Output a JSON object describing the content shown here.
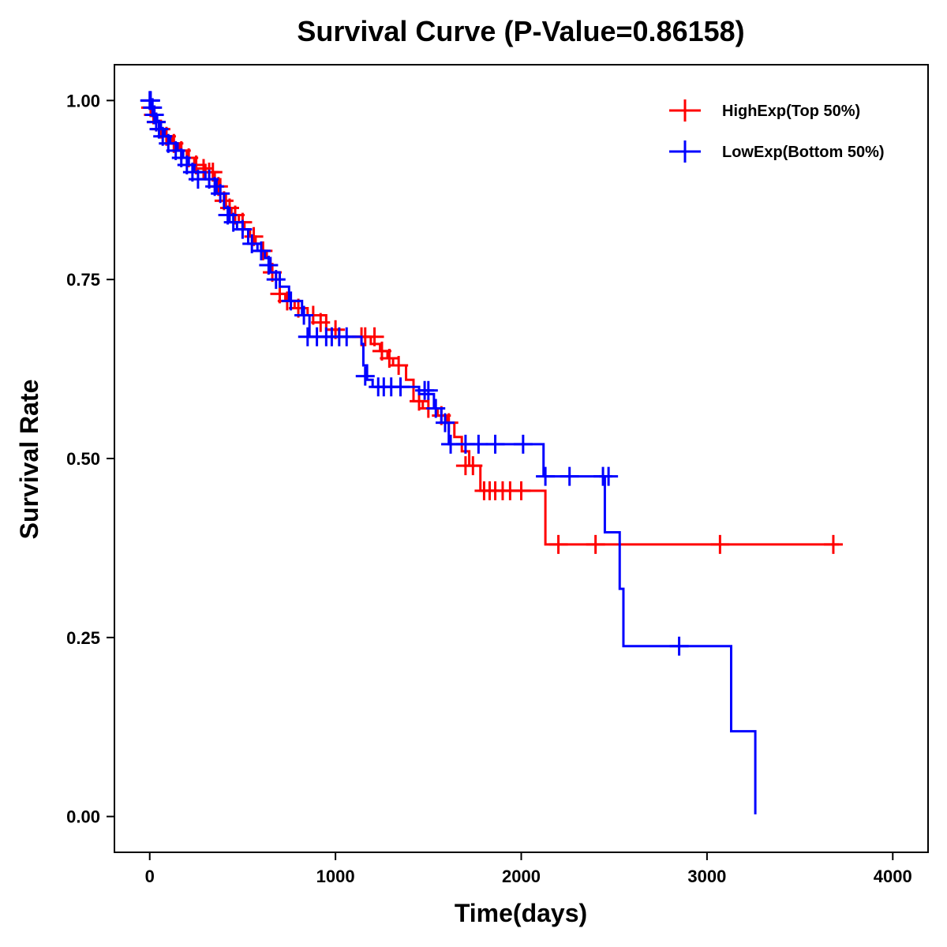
{
  "chart_data": {
    "type": "line",
    "step": true,
    "title": "Survival Curve (P-Value=0.86158)",
    "xlabel": "Time(days)",
    "ylabel": "Survival Rate",
    "xlim": [
      -190,
      4190
    ],
    "ylim": [
      -0.05,
      1.05
    ],
    "xticks": [
      0,
      1000,
      2000,
      3000,
      4000
    ],
    "xtick_labels": [
      "0",
      "1000",
      "2000",
      "3000",
      "4000"
    ],
    "yticks": [
      0.0,
      0.25,
      0.5,
      0.75,
      1.0
    ],
    "ytick_labels": [
      "0.00",
      "0.25",
      "0.50",
      "0.75",
      "1.00"
    ],
    "legend_position": "top-right",
    "series": [
      {
        "name": "HighExp(Top 50%)",
        "color": "#ff0000",
        "steps": [
          [
            0,
            1.0
          ],
          [
            10,
            0.99
          ],
          [
            25,
            0.97
          ],
          [
            50,
            0.96
          ],
          [
            80,
            0.95
          ],
          [
            120,
            0.94
          ],
          [
            160,
            0.93
          ],
          [
            200,
            0.92
          ],
          [
            240,
            0.91
          ],
          [
            300,
            0.9
          ],
          [
            350,
            0.89
          ],
          [
            380,
            0.87
          ],
          [
            410,
            0.85
          ],
          [
            440,
            0.84
          ],
          [
            480,
            0.83
          ],
          [
            510,
            0.82
          ],
          [
            540,
            0.81
          ],
          [
            570,
            0.8
          ],
          [
            600,
            0.79
          ],
          [
            630,
            0.78
          ],
          [
            650,
            0.76
          ],
          [
            680,
            0.75
          ],
          [
            700,
            0.73
          ],
          [
            730,
            0.72
          ],
          [
            780,
            0.71
          ],
          [
            850,
            0.7
          ],
          [
            950,
            0.68
          ],
          [
            1020,
            0.67
          ],
          [
            1190,
            0.66
          ],
          [
            1240,
            0.65
          ],
          [
            1280,
            0.64
          ],
          [
            1310,
            0.63
          ],
          [
            1380,
            0.61
          ],
          [
            1420,
            0.58
          ],
          [
            1470,
            0.57
          ],
          [
            1550,
            0.56
          ],
          [
            1600,
            0.55
          ],
          [
            1640,
            0.53
          ],
          [
            1680,
            0.51
          ],
          [
            1720,
            0.49
          ],
          [
            1780,
            0.455
          ],
          [
            2130,
            0.38
          ],
          [
            3710,
            0.38
          ]
        ],
        "censors": [
          [
            5,
            0.99
          ],
          [
            20,
            0.98
          ],
          [
            35,
            0.97
          ],
          [
            60,
            0.96
          ],
          [
            90,
            0.95
          ],
          [
            130,
            0.94
          ],
          [
            170,
            0.93
          ],
          [
            210,
            0.92
          ],
          [
            250,
            0.91
          ],
          [
            290,
            0.905
          ],
          [
            320,
            0.9
          ],
          [
            340,
            0.9
          ],
          [
            370,
            0.88
          ],
          [
            400,
            0.86
          ],
          [
            430,
            0.85
          ],
          [
            460,
            0.84
          ],
          [
            500,
            0.83
          ],
          [
            560,
            0.81
          ],
          [
            610,
            0.79
          ],
          [
            660,
            0.76
          ],
          [
            700,
            0.73
          ],
          [
            740,
            0.72
          ],
          [
            800,
            0.71
          ],
          [
            880,
            0.7
          ],
          [
            920,
            0.69
          ],
          [
            1000,
            0.68
          ],
          [
            1140,
            0.67
          ],
          [
            1160,
            0.67
          ],
          [
            1210,
            0.67
          ],
          [
            1250,
            0.65
          ],
          [
            1290,
            0.64
          ],
          [
            1340,
            0.63
          ],
          [
            1450,
            0.58
          ],
          [
            1500,
            0.57
          ],
          [
            1570,
            0.56
          ],
          [
            1610,
            0.55
          ],
          [
            1700,
            0.49
          ],
          [
            1740,
            0.49
          ],
          [
            1800,
            0.455
          ],
          [
            1830,
            0.455
          ],
          [
            1860,
            0.455
          ],
          [
            1900,
            0.455
          ],
          [
            1940,
            0.455
          ],
          [
            2000,
            0.455
          ],
          [
            2200,
            0.38
          ],
          [
            2400,
            0.38
          ],
          [
            3070,
            0.38
          ],
          [
            3680,
            0.38
          ]
        ]
      },
      {
        "name": "LowExp(Bottom 50%)",
        "color": "#0000ff",
        "steps": [
          [
            0,
            1.0
          ],
          [
            10,
            0.99
          ],
          [
            20,
            0.98
          ],
          [
            40,
            0.97
          ],
          [
            60,
            0.96
          ],
          [
            80,
            0.95
          ],
          [
            110,
            0.94
          ],
          [
            150,
            0.93
          ],
          [
            180,
            0.92
          ],
          [
            210,
            0.91
          ],
          [
            240,
            0.9
          ],
          [
            300,
            0.89
          ],
          [
            360,
            0.87
          ],
          [
            400,
            0.85
          ],
          [
            430,
            0.83
          ],
          [
            470,
            0.82
          ],
          [
            530,
            0.8
          ],
          [
            580,
            0.79
          ],
          [
            620,
            0.78
          ],
          [
            650,
            0.76
          ],
          [
            700,
            0.74
          ],
          [
            750,
            0.72
          ],
          [
            820,
            0.7
          ],
          [
            860,
            0.67
          ],
          [
            1140,
            0.66
          ],
          [
            1150,
            0.63
          ],
          [
            1170,
            0.61
          ],
          [
            1200,
            0.6
          ],
          [
            1450,
            0.59
          ],
          [
            1530,
            0.57
          ],
          [
            1570,
            0.55
          ],
          [
            1610,
            0.52
          ],
          [
            2120,
            0.475
          ],
          [
            2450,
            0.397
          ],
          [
            2530,
            0.318
          ],
          [
            2550,
            0.238
          ],
          [
            3130,
            0.119
          ],
          [
            3260,
            0.119
          ],
          [
            3260,
            0.003
          ]
        ],
        "censors": [
          [
            0,
            1.0
          ],
          [
            5,
            1.0
          ],
          [
            15,
            0.99
          ],
          [
            25,
            0.98
          ],
          [
            35,
            0.97
          ],
          [
            50,
            0.96
          ],
          [
            70,
            0.95
          ],
          [
            100,
            0.94
          ],
          [
            140,
            0.93
          ],
          [
            170,
            0.92
          ],
          [
            200,
            0.91
          ],
          [
            230,
            0.9
          ],
          [
            260,
            0.89
          ],
          [
            320,
            0.89
          ],
          [
            350,
            0.88
          ],
          [
            380,
            0.87
          ],
          [
            420,
            0.84
          ],
          [
            450,
            0.83
          ],
          [
            500,
            0.82
          ],
          [
            550,
            0.8
          ],
          [
            600,
            0.79
          ],
          [
            640,
            0.77
          ],
          [
            680,
            0.75
          ],
          [
            760,
            0.72
          ],
          [
            830,
            0.7
          ],
          [
            850,
            0.67
          ],
          [
            900,
            0.67
          ],
          [
            950,
            0.67
          ],
          [
            980,
            0.67
          ],
          [
            1020,
            0.67
          ],
          [
            1060,
            0.67
          ],
          [
            1160,
            0.615
          ],
          [
            1230,
            0.6
          ],
          [
            1260,
            0.6
          ],
          [
            1300,
            0.6
          ],
          [
            1350,
            0.6
          ],
          [
            1480,
            0.595
          ],
          [
            1500,
            0.595
          ],
          [
            1540,
            0.57
          ],
          [
            1590,
            0.55
          ],
          [
            1620,
            0.52
          ],
          [
            1700,
            0.52
          ],
          [
            1770,
            0.52
          ],
          [
            1860,
            0.52
          ],
          [
            2010,
            0.52
          ],
          [
            2130,
            0.475
          ],
          [
            2260,
            0.475
          ],
          [
            2440,
            0.475
          ],
          [
            2470,
            0.475
          ],
          [
            2850,
            0.238
          ]
        ]
      }
    ]
  }
}
